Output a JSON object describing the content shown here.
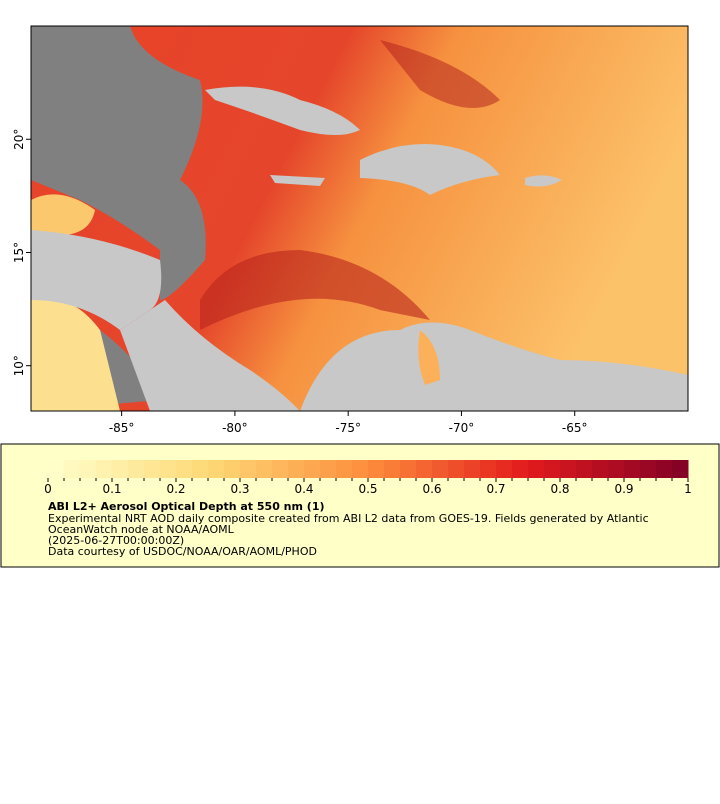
{
  "map": {
    "xlim": [
      -89,
      -60
    ],
    "ylim": [
      8,
      25
    ],
    "xticks": [
      {
        "value": -85,
        "label": "-85°"
      },
      {
        "value": -80,
        "label": "-80°"
      },
      {
        "value": -75,
        "label": "-75°"
      },
      {
        "value": -70,
        "label": "-70°"
      },
      {
        "value": -65,
        "label": "-65°"
      }
    ],
    "yticks": [
      {
        "value": 10,
        "label": "10°"
      },
      {
        "value": 15,
        "label": "15°"
      },
      {
        "value": 20,
        "label": "20°"
      }
    ]
  },
  "colorbar": {
    "lim": [
      0,
      1
    ],
    "ticks": [
      0,
      0.1,
      0.2,
      0.3,
      0.4,
      0.5,
      0.6,
      0.7,
      0.8,
      0.9,
      1
    ]
  },
  "legend": {
    "title": "ABI L2+ Aerosol Optical Depth at 550 nm (1)",
    "lines": [
      "Experimental NRT AOD daily composite created from ABI L2 data from GOES-19. Fields generated by Atlantic",
      "OceanWatch node at NOAA/AOML",
      "(2025-06-27T00:00:00Z)",
      "Data courtesy of USDOC/NOAA/OAR/AOML/PHOD"
    ]
  }
}
